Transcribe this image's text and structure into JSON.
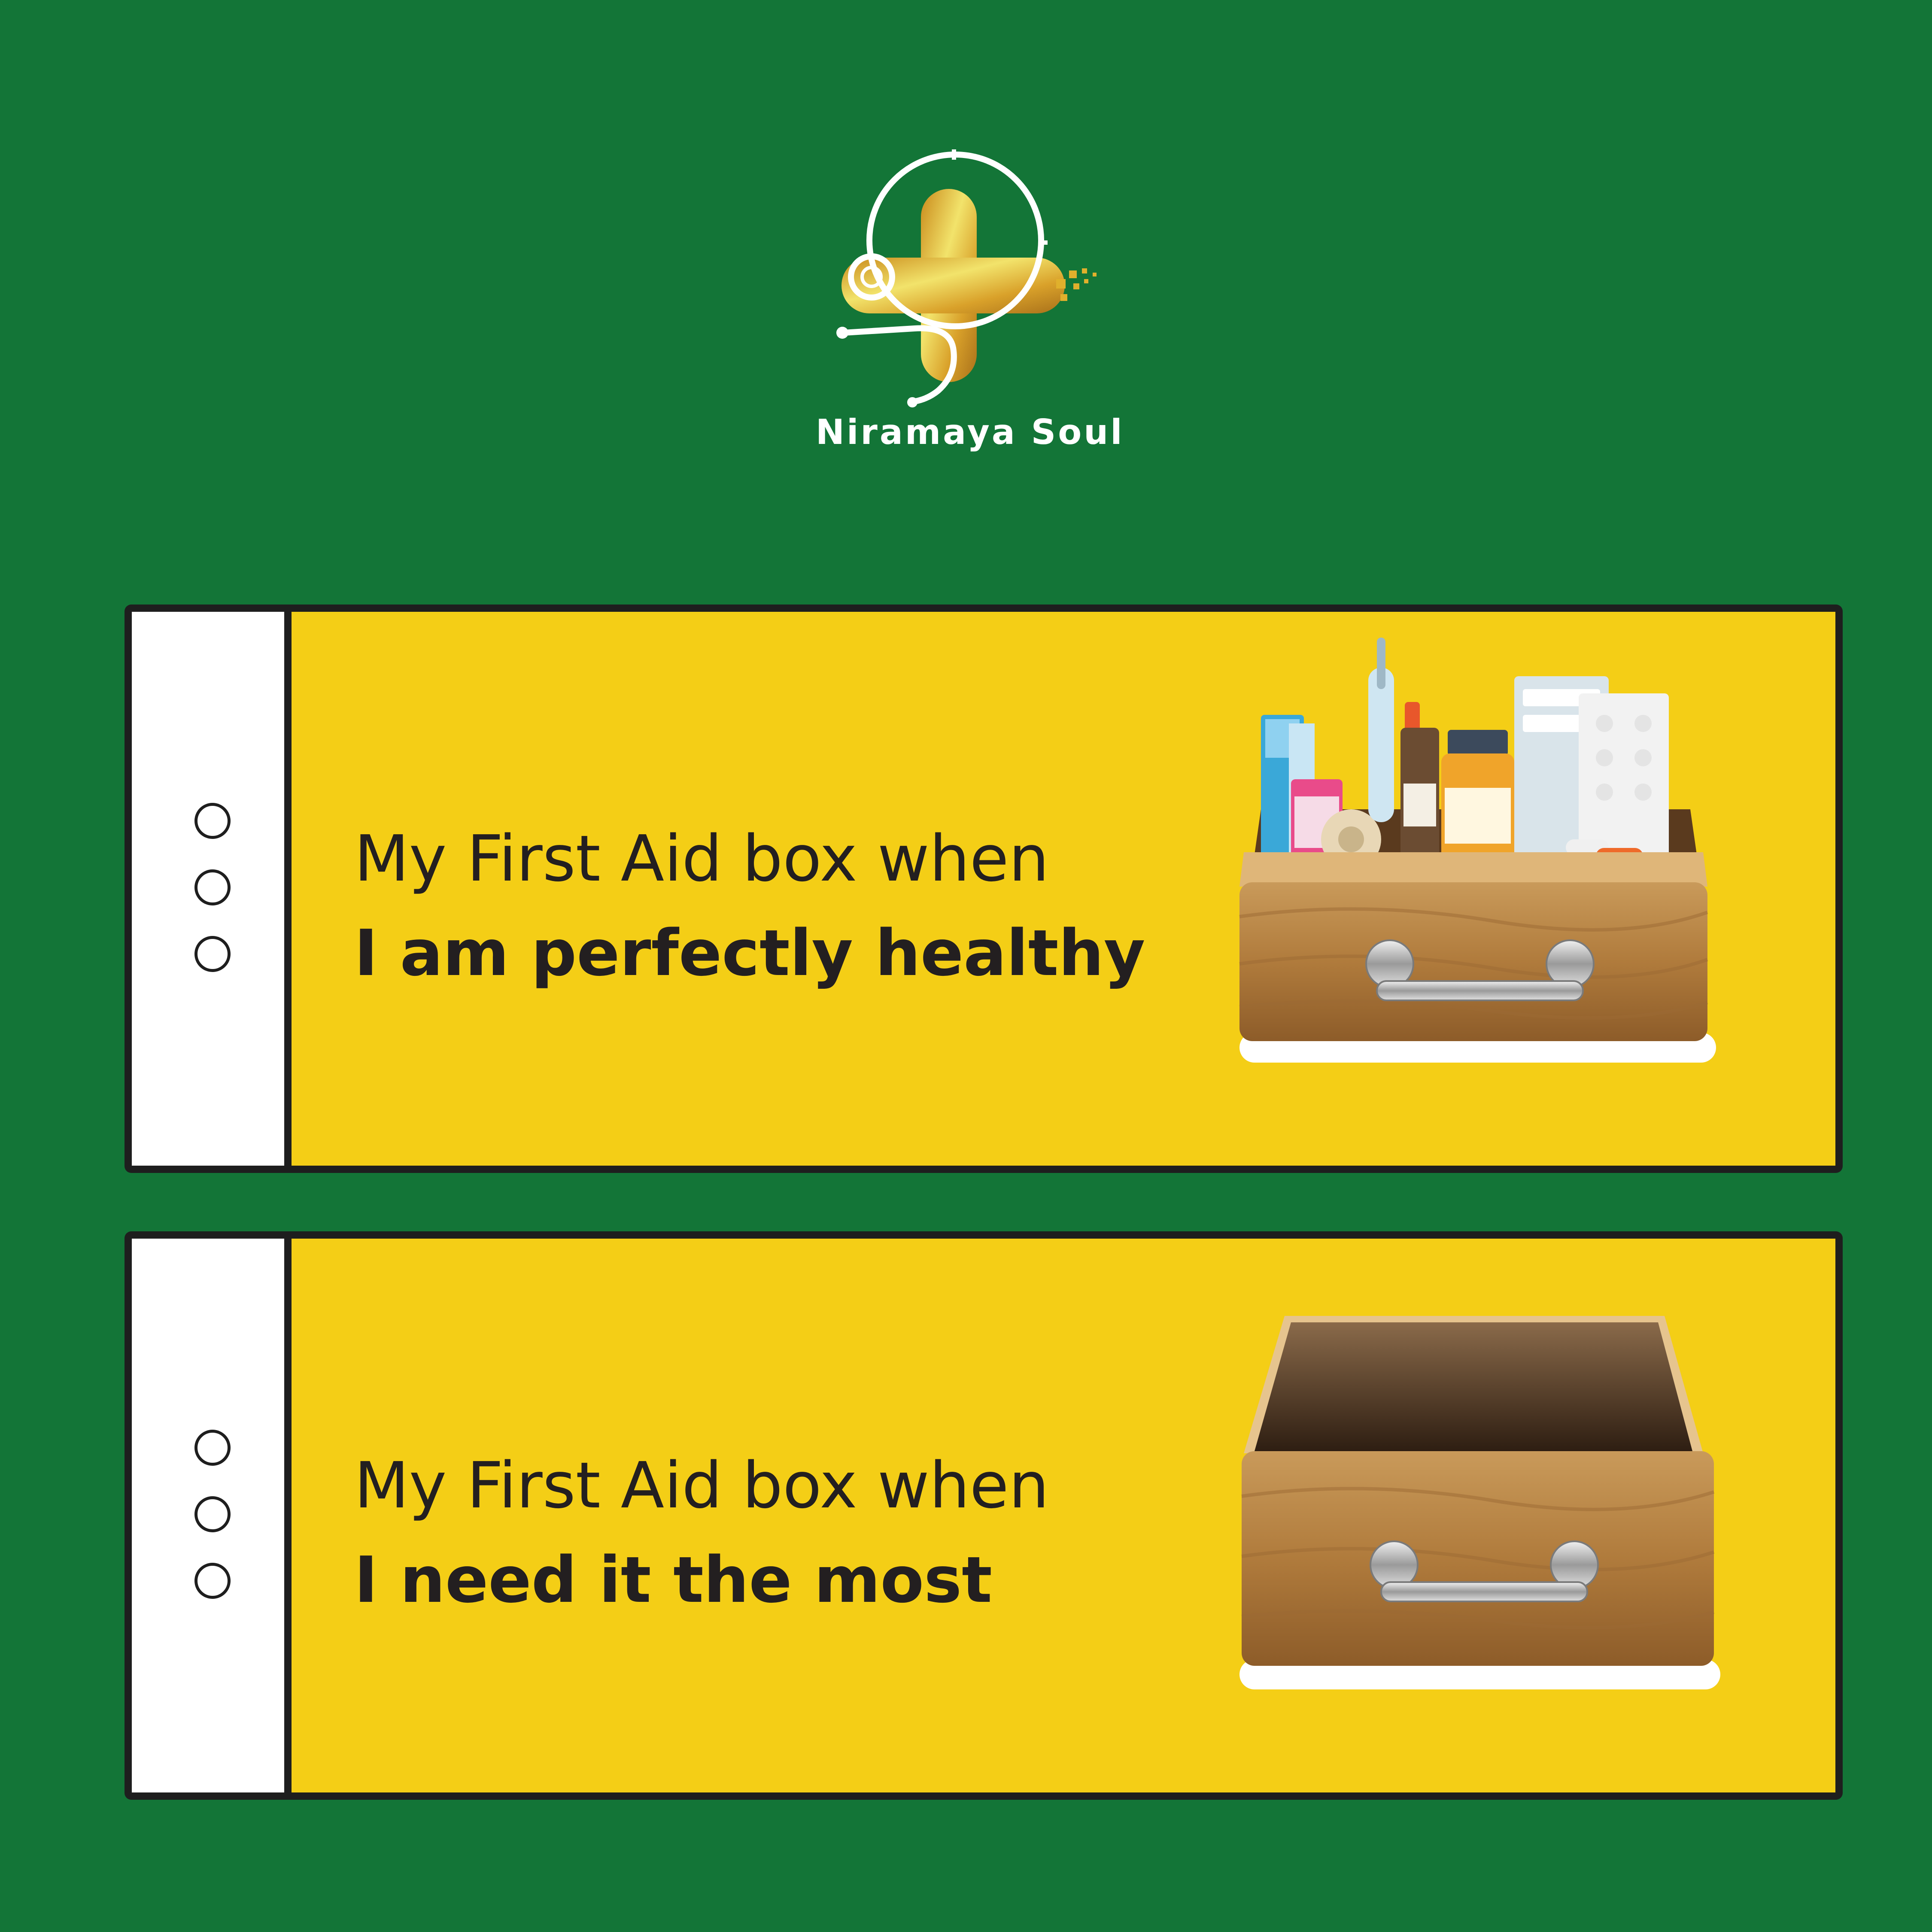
{
  "brand": {
    "name": "Niramaya Soul"
  },
  "colors": {
    "background": "#137537",
    "card": "#f4ce16",
    "outline": "#1e1e1e",
    "text": "#231f20",
    "logo_gold": "#e0b02c",
    "logo_line": "#ffffff"
  },
  "cards": [
    {
      "line1": "My First Aid box when",
      "line2": "I am perfectly healthy",
      "image": "full-first-aid-box"
    },
    {
      "line1": "My First Aid box when",
      "line2": "I need it the most",
      "image": "empty-first-aid-box"
    }
  ]
}
